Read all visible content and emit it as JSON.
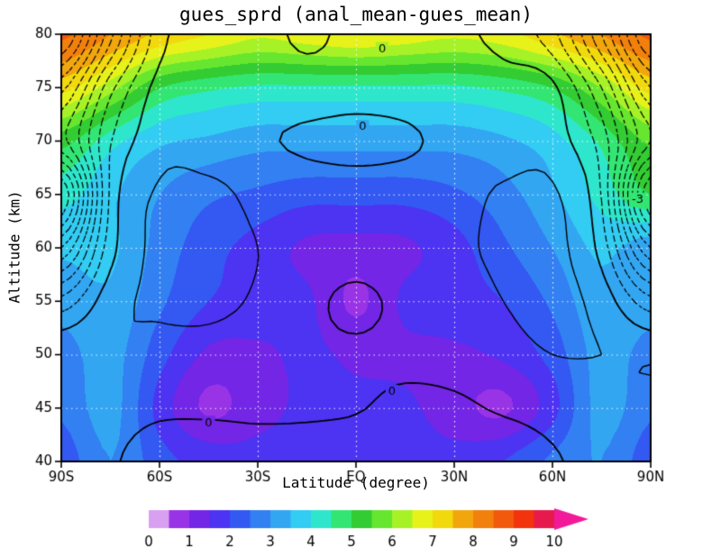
{
  "figure": {
    "title": "gues_sprd (anal_mean-gues_mean)",
    "xlabel": "Latitude (degree)",
    "ylabel": "Altitude (km)"
  },
  "chart_data": {
    "type": "heatmap",
    "title": "gues_sprd (anal_mean-gues_mean)",
    "xlabel": "Latitude (degree)",
    "ylabel": "Altitude (km)",
    "xlim": [
      -90,
      90
    ],
    "ylim": [
      40,
      80
    ],
    "grid": true,
    "x_tick_labels": [
      "90S",
      "60S",
      "30S",
      "EQ",
      "30N",
      "60N",
      "90N"
    ],
    "x_tick_values": [
      -90,
      -60,
      -30,
      0,
      30,
      60,
      90
    ],
    "y_tick_values": [
      40,
      45,
      50,
      55,
      60,
      65,
      70,
      75,
      80
    ],
    "lat": [
      -90,
      -75,
      -60,
      -45,
      -30,
      -15,
      0,
      15,
      30,
      45,
      60,
      75,
      90
    ],
    "alt": [
      40,
      45,
      50,
      55,
      60,
      65,
      70,
      75,
      80
    ],
    "fill_series_name": "gues_sprd",
    "fill_values": [
      [
        2.2,
        3.0,
        2.2,
        1.8,
        1.7,
        1.8,
        1.8,
        1.8,
        1.7,
        2.0,
        2.6,
        3.0,
        2.2
      ],
      [
        2.6,
        3.2,
        1.8,
        0.9,
        1.3,
        1.6,
        1.6,
        1.6,
        1.2,
        0.9,
        1.8,
        3.2,
        2.6
      ],
      [
        2.8,
        3.2,
        2.2,
        1.4,
        1.4,
        1.6,
        1.4,
        1.4,
        1.4,
        1.6,
        2.2,
        3.2,
        2.8
      ],
      [
        3.2,
        3.4,
        2.6,
        2.0,
        1.8,
        1.6,
        0.9,
        1.6,
        1.8,
        2.0,
        2.6,
        3.4,
        3.2
      ],
      [
        3.6,
        3.6,
        2.8,
        2.2,
        1.8,
        1.4,
        1.3,
        1.4,
        1.8,
        2.4,
        3.0,
        3.6,
        3.2
      ],
      [
        4.2,
        3.6,
        3.0,
        2.6,
        2.4,
        2.2,
        2.2,
        2.2,
        2.4,
        2.8,
        3.4,
        4.2,
        5.0
      ],
      [
        5.2,
        4.2,
        3.6,
        3.4,
        3.2,
        3.2,
        3.2,
        3.2,
        3.2,
        3.4,
        3.8,
        4.6,
        5.6
      ],
      [
        7.2,
        6.2,
        5.0,
        4.6,
        4.4,
        4.4,
        4.4,
        4.4,
        4.4,
        4.6,
        5.0,
        6.0,
        7.2
      ],
      [
        8.6,
        8.0,
        7.4,
        7.0,
        6.6,
        6.8,
        7.0,
        6.8,
        6.6,
        6.8,
        7.4,
        8.0,
        8.6
      ]
    ],
    "fill_min": 0,
    "fill_interval": 0.5,
    "fill_colors": [
      "#d9a0f2",
      "#9933e6",
      "#7326e6",
      "#4d33f2",
      "#3359f2",
      "#3380f2",
      "#33a6f2",
      "#33ccf2",
      "#2ee6cc",
      "#33e673",
      "#33cc33",
      "#66e62e",
      "#a6f226",
      "#e6f21a",
      "#f2d90d",
      "#f2a60d",
      "#f2800d",
      "#f2590d",
      "#f2330d",
      "#e61a4d"
    ],
    "overflow_color": "#f21a99",
    "colorbar_ticks": [
      0,
      1,
      2,
      3,
      4,
      5,
      6,
      7,
      8,
      9,
      10
    ],
    "contour_series_name": "anal_mean-gues_mean",
    "contour_values": [
      [
        0.8,
        0.2,
        -0.9,
        -1.2,
        -1.1,
        -1.0,
        -1.0,
        -1.0,
        -1.1,
        -1.2,
        -0.2,
        0.6,
        1.0
      ],
      [
        1.0,
        0.7,
        0.3,
        0.3,
        0.4,
        0.3,
        0.1,
        -0.4,
        -0.3,
        0.2,
        0.6,
        0.9,
        1.1
      ],
      [
        1.3,
        1.5,
        1.1,
        0.9,
        0.6,
        0.4,
        0.3,
        0.4,
        0.6,
        1.0,
        1.5,
        1.5,
        1.3
      ],
      [
        -2.5,
        0.9,
        1.7,
        1.9,
        1.3,
        0.5,
        -0.4,
        0.5,
        0.9,
        1.5,
        1.9,
        0.9,
        -2.5
      ],
      [
        -9,
        -0.6,
        1.9,
        2.1,
        1.5,
        1.1,
        0.9,
        1.1,
        1.3,
        1.7,
        1.9,
        -0.6,
        -9
      ],
      [
        -15,
        -1.2,
        1.7,
        1.9,
        1.1,
        0.7,
        0.5,
        0.7,
        0.9,
        1.7,
        1.7,
        -1.6,
        -15
      ],
      [
        -8,
        -1.6,
        0.9,
        0.7,
        0.2,
        -0.2,
        -0.3,
        -0.2,
        0.4,
        0.7,
        0.7,
        -2.2,
        -9
      ],
      [
        -11,
        -3.5,
        0.5,
        0.9,
        0.7,
        0.5,
        0.4,
        0.6,
        0.9,
        0.7,
        0.3,
        -4.5,
        -12
      ],
      [
        -17,
        -8,
        -0.6,
        0.4,
        0.6,
        -0.3,
        0.5,
        0.7,
        0.4,
        -0.6,
        -2.5,
        -9,
        -17
      ]
    ],
    "contour_neg_levels": [
      -15,
      -13.5,
      -12,
      -10.5,
      -9,
      -7.5,
      -6,
      -4.5,
      -3,
      -1.5
    ],
    "contour_pos_levels": [
      0,
      1.5,
      3
    ],
    "contour_labels": [
      {
        "text": "0",
        "lat": 8,
        "alt": 78.6
      },
      {
        "text": "0",
        "lat": 2,
        "alt": 71.3
      },
      {
        "text": "0",
        "lat": -45,
        "alt": 43.6
      },
      {
        "text": "0",
        "lat": 11,
        "alt": 46.5
      },
      {
        "text": "-3",
        "lat": 86,
        "alt": 64.5
      }
    ]
  }
}
